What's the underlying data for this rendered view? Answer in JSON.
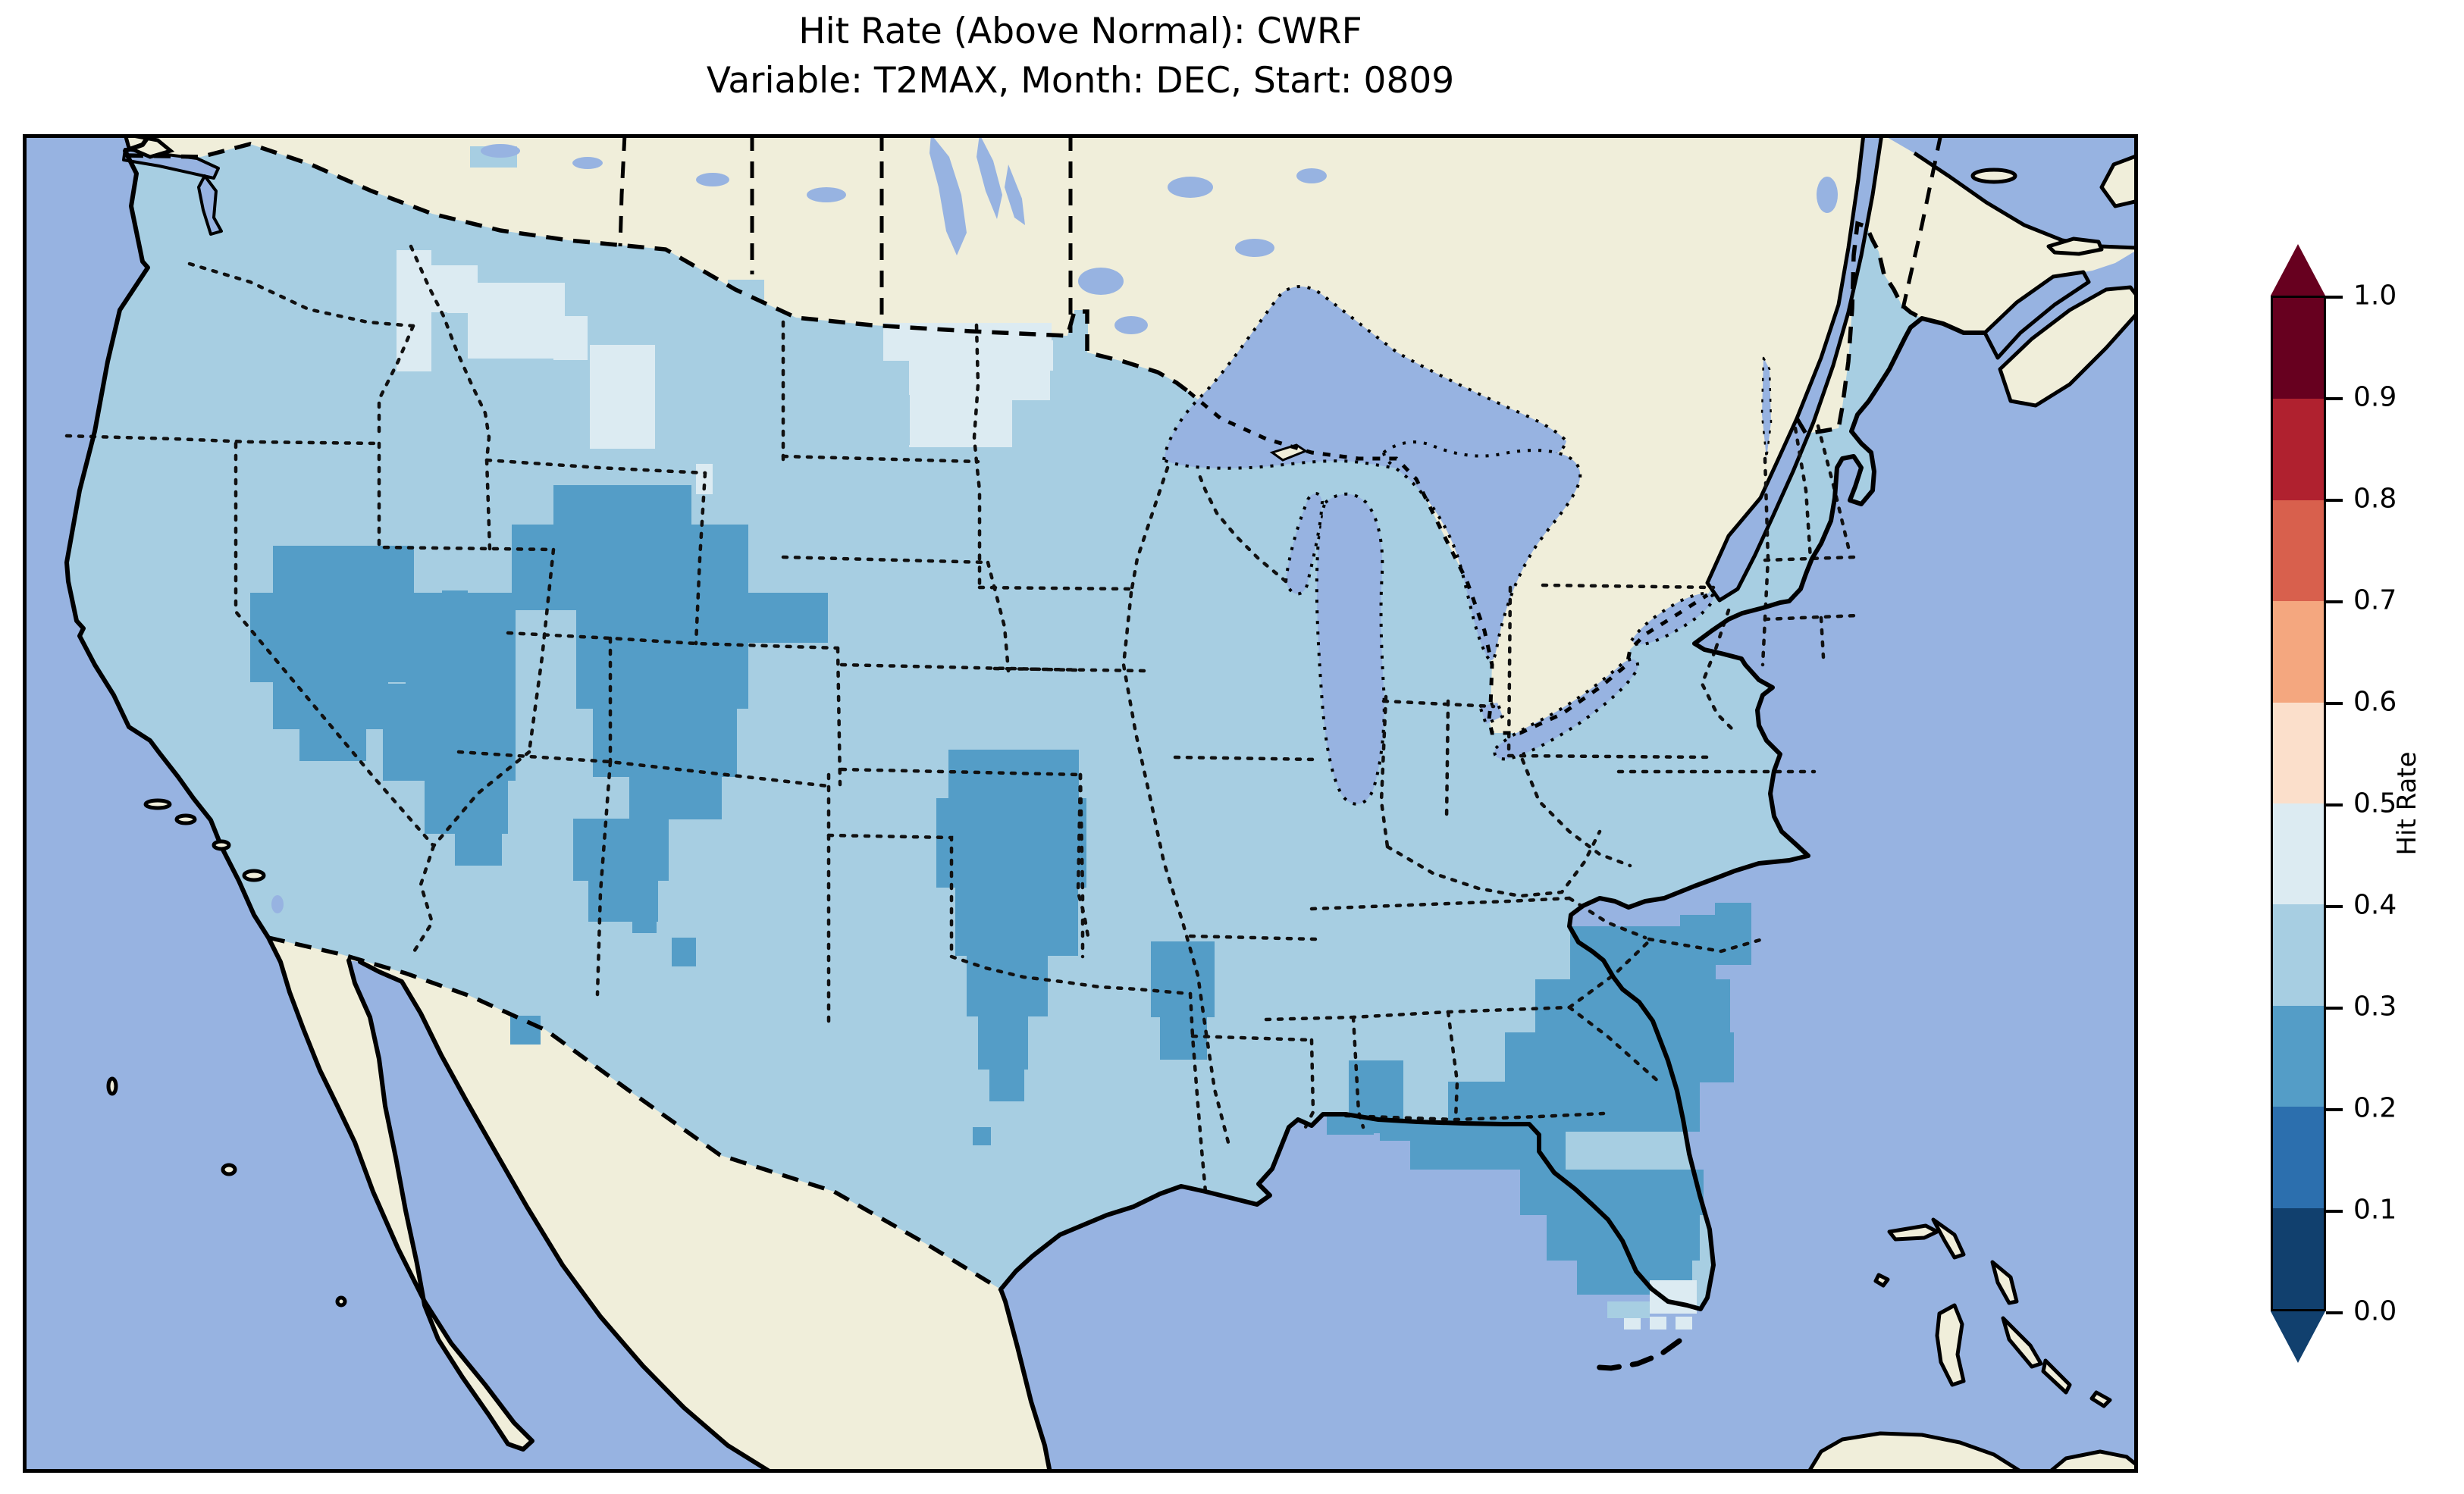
{
  "title": {
    "line1": "Hit Rate (Above Normal): CWRF",
    "line2": "Variable: T2MAX, Month: DEC, Start: 0809"
  },
  "colorbar": {
    "label": "Hit Rate",
    "ticks": [
      "1.0",
      "0.9",
      "0.8",
      "0.7",
      "0.6",
      "0.5",
      "0.4",
      "0.3",
      "0.2",
      "0.1",
      "0.0"
    ],
    "segments_top_to_bottom": [
      {
        "range": "0.9-1.0",
        "color": "#67001f"
      },
      {
        "range": "0.8-0.9",
        "color": "#b0212f"
      },
      {
        "range": "0.7-0.8",
        "color": "#d8604d"
      },
      {
        "range": "0.6-0.7",
        "color": "#f4a77f"
      },
      {
        "range": "0.5-0.6",
        "color": "#fbdfcb"
      },
      {
        "range": "0.4-0.5",
        "color": "#dcebf2"
      },
      {
        "range": "0.3-0.4",
        "color": "#a7cee2"
      },
      {
        "range": "0.2-0.3",
        "color": "#549dc7"
      },
      {
        "range": "0.1-0.2",
        "color": "#2c6fae"
      },
      {
        "range": "0.0-0.1",
        "color": "#11406e"
      }
    ],
    "extend_top_color": "#67001f",
    "extend_bottom_color": "#11406e"
  },
  "map": {
    "colors": {
      "ocean": "#97b3e1",
      "land": "#f0eeda",
      "data_base": "#a7cee2",
      "patch_light": "#dcebf2",
      "patch_dark": "#549dc7",
      "coastline": "#000000"
    }
  },
  "chart_data": {
    "type": "heatmap",
    "subtype": "gridded choropleth map (CONUS, Lambert-conformal style projection)",
    "title": "Hit Rate (Above Normal): CWRF",
    "subtitle": "Variable: T2MAX, Month: DEC, Start: 0809",
    "model": "CWRF",
    "variable": "T2MAX",
    "month": "DEC",
    "start": "0809",
    "category": "Above Normal",
    "colorbar_label": "Hit Rate",
    "value_range": [
      0.0,
      1.0
    ],
    "bin_width": 0.1,
    "legend_position": "right",
    "dominant_bin": "0.3-0.4 (light blue) over most of the contiguous US",
    "regions": [
      {
        "area": "Most of contiguous US",
        "hit_rate": "0.3-0.4"
      },
      {
        "area": "NE Nevada, Utah, W Colorado, Wyoming, S Montana",
        "hit_rate": "0.2-0.3"
      },
      {
        "area": "Central Oklahoma / N-Central Texas",
        "hit_rate": "0.2-0.3"
      },
      {
        "area": "NE Louisiana / S Arkansas",
        "hit_rate": "0.2-0.3"
      },
      {
        "area": "Georgia, coastal South Carolina, most of Florida, S Alabama",
        "hit_rate": "0.2-0.3"
      },
      {
        "area": "W Montana near Idaho border, central Montana",
        "hit_rate": "0.4-0.5"
      },
      {
        "area": "W North Dakota / E Montana border area",
        "hit_rate": "0.4-0.5"
      },
      {
        "area": "Southern tip of Florida",
        "hit_rate": "0.4-0.5"
      }
    ],
    "patches": {
      "dark_rects": [
        [
          330,
          543,
          186,
          62
        ],
        [
          300,
          605,
          215,
          118
        ],
        [
          330,
          723,
          152,
          62
        ],
        [
          365,
          785,
          88,
          42
        ],
        [
          505,
          605,
          145,
          120
        ],
        [
          475,
          725,
          175,
          128
        ],
        [
          530,
          853,
          110,
          70
        ],
        [
          570,
          923,
          62,
          42
        ],
        [
          553,
          602,
          34,
          46
        ],
        [
          700,
          463,
          182,
          52
        ],
        [
          645,
          515,
          312,
          113
        ],
        [
          730,
          628,
          227,
          130
        ],
        [
          752,
          758,
          190,
          90
        ],
        [
          800,
          848,
          122,
          56
        ],
        [
          955,
          605,
          107,
          66
        ],
        [
          726,
          903,
          126,
          82
        ],
        [
          746,
          985,
          92,
          54
        ],
        [
          804,
          1018,
          32,
          36
        ],
        [
          856,
          1060,
          32,
          38
        ],
        [
          643,
          1163,
          40,
          38
        ],
        [
          1221,
          812,
          172,
          64
        ],
        [
          1205,
          876,
          198,
          118
        ],
        [
          1230,
          994,
          162,
          90
        ],
        [
          1245,
          1084,
          107,
          80
        ],
        [
          1260,
          1164,
          66,
          70
        ],
        [
          1275,
          1234,
          46,
          42
        ],
        [
          1253,
          1310,
          24,
          24
        ],
        [
          1488,
          1065,
          84,
          100
        ],
        [
          1500,
          1165,
          62,
          56
        ],
        [
          2232,
          1014,
          48,
          52
        ],
        [
          2186,
          1030,
          94,
          66
        ],
        [
          2041,
          1045,
          192,
          70
        ],
        [
          1995,
          1115,
          257,
          70
        ],
        [
          1955,
          1185,
          302,
          66
        ],
        [
          1880,
          1250,
          332,
          66
        ],
        [
          1830,
          1316,
          205,
          50
        ],
        [
          1749,
          1222,
          72,
          96
        ],
        [
          1975,
          1366,
          242,
          60
        ],
        [
          2010,
          1426,
          202,
          60
        ],
        [
          2050,
          1486,
          152,
          45
        ],
        [
          1720,
          1292,
          62,
          28
        ],
        [
          1790,
          1302,
          92,
          26
        ]
      ],
      "light_rects": [
        [
          493,
          153,
          46,
          160
        ],
        [
          538,
          173,
          62,
          62
        ],
        [
          560,
          196,
          40,
          40
        ],
        [
          587,
          196,
          128,
          100
        ],
        [
          700,
          240,
          45,
          58
        ],
        [
          748,
          278,
          86,
          137
        ],
        [
          888,
          435,
          22,
          40
        ],
        [
          1135,
          249,
          222,
          50
        ],
        [
          1169,
          299,
          186,
          52
        ],
        [
          1169,
          351,
          136,
          62
        ],
        [
          1311,
          272,
          48,
          40
        ],
        [
          1672,
          362,
          24,
          24
        ],
        [
          2146,
          1512,
          62,
          44
        ],
        [
          2112,
          1560,
          22,
          17
        ],
        [
          2146,
          1560,
          22,
          17
        ],
        [
          2180,
          1560,
          22,
          17
        ]
      ],
      "base_rects": [
        [
          590,
          16,
          62,
          28
        ],
        [
          930,
          192,
          48,
          30
        ],
        [
          1387,
          232,
          18,
          52
        ],
        [
          1124,
          344,
          46,
          66
        ],
        [
          940,
          1188,
          26,
          24
        ],
        [
          700,
          1158,
          24,
          22
        ],
        [
          2090,
          1540,
          56,
          22
        ]
      ]
    }
  }
}
